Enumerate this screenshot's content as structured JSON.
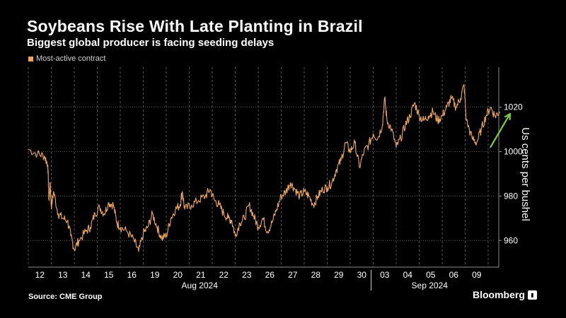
{
  "header": {
    "title": "Soybeans Rise With Late Planting in Brazil",
    "subtitle": "Biggest global producer is facing seeding delays"
  },
  "footer": {
    "source": "Source: CME Group",
    "logo": "Bloomberg"
  },
  "colors": {
    "series": "#f0a860",
    "grid": "#6a6a6a",
    "arrow": "#7ccb3c",
    "axis": "#8a8a8a"
  },
  "chart_data": {
    "type": "line",
    "title": "Soybeans Rise With Late Planting in Brazil",
    "subtitle": "Biggest global producer is facing seeding delays",
    "ylabel": "Us cents per bushel",
    "xlabel": "",
    "ylim": [
      948,
      1038
    ],
    "yticks": [
      960,
      980,
      1000,
      1020
    ],
    "y_axis_side": "right",
    "grid": true,
    "legend": [
      "Most-active contract"
    ],
    "legend_position": "top-left",
    "x_tick_labels": [
      "12",
      "13",
      "14",
      "15",
      "16",
      "19",
      "20",
      "21",
      "22",
      "23",
      "26",
      "27",
      "28",
      "29",
      "30",
      "03",
      "04",
      "05",
      "06",
      "09"
    ],
    "x_period_labels": [
      "Aug 2024",
      "Sep 2024"
    ],
    "series": [
      {
        "name": "Most-active contract",
        "x_unit": "trading-day index (0 = Aug 12 open)",
        "points": [
          [
            0.0,
            1001
          ],
          [
            0.4,
            999
          ],
          [
            0.7,
            998
          ],
          [
            0.85,
            994
          ],
          [
            0.9,
            978
          ],
          [
            0.95,
            986
          ],
          [
            1.0,
            975
          ],
          [
            1.1,
            982
          ],
          [
            1.3,
            972
          ],
          [
            1.5,
            970
          ],
          [
            1.7,
            969
          ],
          [
            1.85,
            962
          ],
          [
            2.0,
            956
          ],
          [
            2.2,
            960
          ],
          [
            2.5,
            964
          ],
          [
            2.7,
            966
          ],
          [
            2.9,
            972
          ],
          [
            3.1,
            975
          ],
          [
            3.3,
            972
          ],
          [
            3.5,
            977
          ],
          [
            3.7,
            976
          ],
          [
            3.85,
            968
          ],
          [
            4.0,
            966
          ],
          [
            4.3,
            964
          ],
          [
            4.6,
            960
          ],
          [
            4.8,
            955
          ],
          [
            5.0,
            963
          ],
          [
            5.2,
            966
          ],
          [
            5.4,
            972
          ],
          [
            5.6,
            966
          ],
          [
            5.8,
            961
          ],
          [
            6.0,
            962
          ],
          [
            6.2,
            970
          ],
          [
            6.4,
            974
          ],
          [
            6.6,
            976
          ],
          [
            6.7,
            982
          ],
          [
            6.8,
            974
          ],
          [
            7.1,
            976
          ],
          [
            7.4,
            978
          ],
          [
            7.7,
            980
          ],
          [
            7.9,
            983
          ],
          [
            8.1,
            978
          ],
          [
            8.3,
            976
          ],
          [
            8.5,
            972
          ],
          [
            8.7,
            970
          ],
          [
            8.85,
            969
          ],
          [
            9.0,
            962
          ],
          [
            9.2,
            968
          ],
          [
            9.4,
            970
          ],
          [
            9.6,
            976
          ],
          [
            9.8,
            971
          ],
          [
            10.0,
            966
          ],
          [
            10.2,
            970
          ],
          [
            10.4,
            964
          ],
          [
            10.6,
            968
          ],
          [
            10.8,
            974
          ],
          [
            11.0,
            980
          ],
          [
            11.2,
            982
          ],
          [
            11.4,
            986
          ],
          [
            11.6,
            983
          ],
          [
            11.8,
            980
          ],
          [
            12.0,
            982
          ],
          [
            12.2,
            980
          ],
          [
            12.4,
            976
          ],
          [
            12.6,
            980
          ],
          [
            12.8,
            983
          ],
          [
            13.0,
            984
          ],
          [
            13.2,
            986
          ],
          [
            13.4,
            992
          ],
          [
            13.6,
            996
          ],
          [
            13.8,
            1004
          ],
          [
            14.0,
            1000
          ],
          [
            14.2,
            1004
          ],
          [
            14.4,
            993
          ],
          [
            14.6,
            1000
          ],
          [
            14.8,
            1003
          ],
          [
            15.0,
            1008
          ],
          [
            15.2,
            1006
          ],
          [
            15.4,
            1012
          ],
          [
            15.5,
            1024
          ],
          [
            15.6,
            1014
          ],
          [
            15.8,
            1010
          ],
          [
            16.0,
            1002
          ],
          [
            16.2,
            1006
          ],
          [
            16.4,
            1012
          ],
          [
            16.6,
            1016
          ],
          [
            16.8,
            1022
          ],
          [
            17.0,
            1016
          ],
          [
            17.2,
            1014
          ],
          [
            17.4,
            1016
          ],
          [
            17.6,
            1018
          ],
          [
            17.8,
            1014
          ],
          [
            18.0,
            1016
          ],
          [
            18.2,
            1020
          ],
          [
            18.4,
            1024
          ],
          [
            18.6,
            1020
          ],
          [
            18.8,
            1024
          ],
          [
            18.95,
            1030
          ],
          [
            19.05,
            1014
          ],
          [
            19.3,
            1006
          ],
          [
            19.5,
            1004
          ],
          [
            19.7,
            1010
          ],
          [
            19.9,
            1016
          ],
          [
            20.1,
            1020
          ],
          [
            20.3,
            1016
          ],
          [
            20.5,
            1018
          ]
        ]
      }
    ],
    "annotations": [
      {
        "type": "arrow",
        "direction": "up-right",
        "from": [
          20.1,
          1002
        ],
        "to": [
          20.95,
          1017
        ]
      }
    ]
  }
}
